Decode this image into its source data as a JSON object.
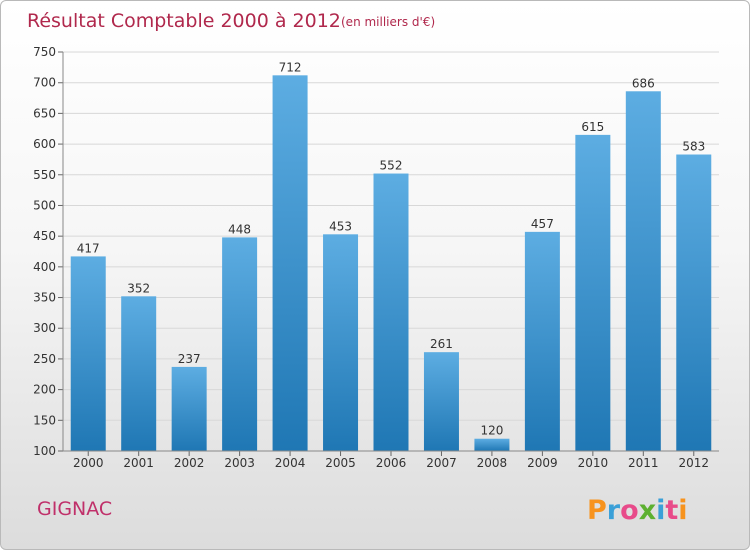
{
  "chart_data": {
    "type": "bar",
    "title": "Résultat Comptable 2000 à 2012",
    "subtitle": "(en milliers d'€)",
    "xlabel": "",
    "ylabel": "",
    "categories": [
      "2000",
      "2001",
      "2002",
      "2003",
      "2004",
      "2005",
      "2006",
      "2007",
      "2008",
      "2009",
      "2010",
      "2011",
      "2012"
    ],
    "values": [
      417,
      352,
      237,
      448,
      712,
      453,
      552,
      261,
      120,
      457,
      615,
      686,
      583
    ],
    "ylim": [
      100,
      750
    ],
    "yticks": [
      100,
      150,
      200,
      250,
      300,
      350,
      400,
      450,
      500,
      550,
      600,
      650,
      700,
      750
    ],
    "grid": true,
    "colors": {
      "bar_light": "#5dade2",
      "bar_dark": "#1f77b4",
      "grid": "#d8d8d8",
      "title": "#b0284c"
    }
  },
  "footer": {
    "city": "GIGNAC",
    "logo": "Proxiti",
    "logo_colors": [
      "#f7931e",
      "#3aa0d8",
      "#e84b8a",
      "#5db030",
      "#3aa0d8",
      "#e84b8a",
      "#f7931e"
    ]
  }
}
